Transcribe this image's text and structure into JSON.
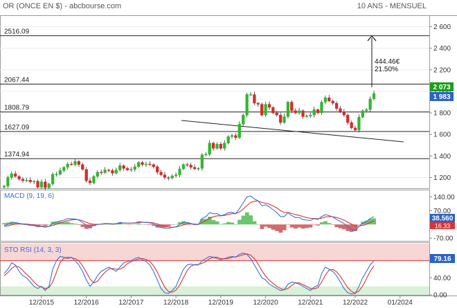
{
  "header": {
    "title": "OR (ONCE EN $) - abcbourse.com",
    "period": "10 ANS - MENSUEL"
  },
  "colors": {
    "up": "#2fb82f",
    "down": "#d82a2a",
    "price_badge": "#1b9e1b",
    "prev_badge": "#2a62c8",
    "macd_line": "#3b6fd6",
    "signal_line": "#d83434",
    "hist_pos": "#6cc46c",
    "hist_neg": "#d46a6a",
    "overbought_band": "#f7d6d6",
    "oversold_band": "#d9f0d9"
  },
  "chart_data": [
    {
      "type": "candlestick",
      "title": "OR (ONCE EN $)",
      "x": [
        "12/2015",
        "12/2016",
        "12/2017",
        "12/2018",
        "12/2019",
        "12/2020",
        "12/2021",
        "12/2022",
        "01/2024"
      ],
      "ylim": [
        1100,
        2700
      ],
      "yticks": [
        1200,
        1400,
        1600,
        1800,
        2000,
        2200,
        2400,
        2600
      ],
      "ytick_labels": [
        "1 200",
        "1 400",
        "1 600",
        "1 800",
        "2 000",
        "2 200",
        "2 400",
        "2 600"
      ],
      "closes": [
        1120,
        1200,
        1235,
        1210,
        1185,
        1170,
        1175,
        1160,
        1165,
        1110,
        1160,
        1105,
        1140,
        1230,
        1230,
        1265,
        1295,
        1325,
        1320,
        1350,
        1320,
        1275,
        1170,
        1150,
        1210,
        1250,
        1245,
        1270,
        1265,
        1240,
        1270,
        1310,
        1285,
        1270,
        1275,
        1300,
        1340,
        1320,
        1325,
        1320,
        1300,
        1250,
        1225,
        1200,
        1195,
        1215,
        1225,
        1280,
        1320,
        1315,
        1295,
        1280,
        1285,
        1410,
        1415,
        1520,
        1470,
        1510,
        1470,
        1520,
        1580,
        1590,
        1570,
        1695,
        1780,
        1970,
        1970,
        1890,
        1880,
        1780,
        1880,
        1850,
        1800,
        1780,
        1710,
        1765,
        1900,
        1820,
        1800,
        1820,
        1765,
        1770,
        1780,
        1830,
        1800,
        1900,
        1940,
        1910,
        1890,
        1840,
        1810,
        1780,
        1710,
        1660,
        1640,
        1760,
        1820,
        1830,
        1930,
        1980
      ],
      "markers": {
        "last_value": "2 073",
        "previous_value": "1 983"
      }
    },
    {
      "type": "line",
      "title": "MACD (9, 19, 6)",
      "ylim": [
        -80,
        170
      ],
      "yticks": [
        140,
        70,
        0,
        -70
      ],
      "ytick_labels": [
        "140.00",
        "70.00",
        "0.00",
        "-70.00"
      ],
      "last_value": "38.560",
      "signal_value": "16.33",
      "series": [
        {
          "name": "macd",
          "values": [
            -5,
            0,
            8,
            10,
            6,
            2,
            0,
            -4,
            -6,
            -12,
            -10,
            -14,
            -10,
            5,
            12,
            18,
            22,
            30,
            28,
            28,
            22,
            10,
            -5,
            -10,
            -5,
            0,
            2,
            5,
            5,
            2,
            4,
            10,
            8,
            6,
            6,
            8,
            14,
            12,
            10,
            8,
            3,
            -8,
            -15,
            -20,
            -20,
            -15,
            -12,
            0,
            10,
            10,
            5,
            0,
            0,
            30,
            40,
            60,
            55,
            55,
            45,
            50,
            60,
            62,
            55,
            80,
            110,
            140,
            145,
            130,
            120,
            95,
            100,
            90,
            75,
            60,
            40,
            40,
            60,
            45,
            35,
            35,
            25,
            22,
            20,
            30,
            25,
            40,
            50,
            45,
            38,
            25,
            15,
            5,
            -12,
            -25,
            -32,
            -10,
            5,
            15,
            30,
            40
          ]
        },
        {
          "name": "signal",
          "values": [
            -10,
            -7,
            -2,
            2,
            3,
            3,
            2,
            0,
            -2,
            -6,
            -8,
            -10,
            -10,
            -5,
            1,
            8,
            14,
            20,
            23,
            25,
            24,
            19,
            11,
            4,
            1,
            1,
            1,
            3,
            4,
            3,
            3,
            6,
            7,
            7,
            7,
            7,
            10,
            11,
            11,
            10,
            8,
            3,
            -3,
            -9,
            -13,
            -14,
            -13,
            -8,
            -2,
            2,
            3,
            2,
            1,
            10,
            20,
            32,
            39,
            44,
            44,
            46,
            51,
            55,
            55,
            63,
            78,
            96,
            112,
            118,
            119,
            112,
            108,
            103,
            94,
            84,
            70,
            61,
            61,
            56,
            50,
            46,
            40,
            35,
            31,
            31,
            29,
            32,
            38,
            40,
            39,
            35,
            29,
            22,
            12,
            2,
            -8,
            -9,
            -5,
            1,
            10,
            18
          ]
        }
      ]
    },
    {
      "type": "line",
      "title": "STO RSI (14, 3, 3)",
      "ylim": [
        0,
        120
      ],
      "yticks": [
        80,
        40,
        0
      ],
      "ytick_labels": [
        "",
        "40.00",
        "0.00"
      ],
      "last_value": "79.16",
      "overbought": 80,
      "oversold": 20,
      "series": [
        {
          "name": "k",
          "values": [
            50,
            60,
            75,
            70,
            55,
            45,
            40,
            30,
            20,
            15,
            20,
            10,
            20,
            60,
            80,
            90,
            88,
            85,
            88,
            80,
            70,
            55,
            35,
            20,
            30,
            45,
            55,
            60,
            65,
            60,
            55,
            65,
            75,
            78,
            80,
            85,
            88,
            82,
            78,
            70,
            55,
            35,
            15,
            5,
            3,
            10,
            20,
            40,
            60,
            70,
            72,
            70,
            70,
            80,
            85,
            90,
            88,
            85,
            82,
            85,
            88,
            90,
            88,
            95,
            98,
            95,
            85,
            70,
            55,
            40,
            35,
            25,
            20,
            15,
            10,
            12,
            25,
            30,
            28,
            25,
            20,
            15,
            10,
            18,
            22,
            50,
            65,
            60,
            55,
            45,
            30,
            15,
            5,
            2,
            3,
            20,
            40,
            55,
            70,
            80
          ]
        },
        {
          "name": "d",
          "values": [
            45,
            52,
            62,
            68,
            65,
            57,
            48,
            40,
            30,
            22,
            18,
            15,
            17,
            30,
            53,
            76,
            86,
            88,
            87,
            85,
            80,
            68,
            53,
            37,
            28,
            32,
            43,
            53,
            60,
            62,
            60,
            60,
            65,
            73,
            78,
            81,
            84,
            85,
            83,
            78,
            68,
            53,
            35,
            18,
            8,
            6,
            11,
            23,
            40,
            57,
            67,
            71,
            71,
            74,
            78,
            85,
            88,
            88,
            85,
            84,
            85,
            88,
            89,
            91,
            94,
            96,
            93,
            85,
            72,
            57,
            44,
            34,
            27,
            20,
            15,
            12,
            15,
            22,
            28,
            28,
            24,
            20,
            15,
            14,
            17,
            30,
            46,
            58,
            60,
            54,
            44,
            30,
            17,
            8,
            4,
            9,
            21,
            38,
            55,
            68
          ]
        }
      ]
    }
  ],
  "levels": [
    {
      "name": "level-2516",
      "value": 2516.09,
      "label": "2516.09"
    },
    {
      "name": "level-2067",
      "value": 2067.44,
      "label": "2067.44"
    },
    {
      "name": "level-1808",
      "value": 1808.79,
      "label": "1808.79"
    },
    {
      "name": "level-1627",
      "value": 1627.09,
      "label": "1627.09"
    },
    {
      "name": "level-1374",
      "value": 1374.94,
      "label": "1374.94"
    }
  ],
  "annotation": {
    "delta": "444.46€",
    "percent": "21.50%"
  }
}
